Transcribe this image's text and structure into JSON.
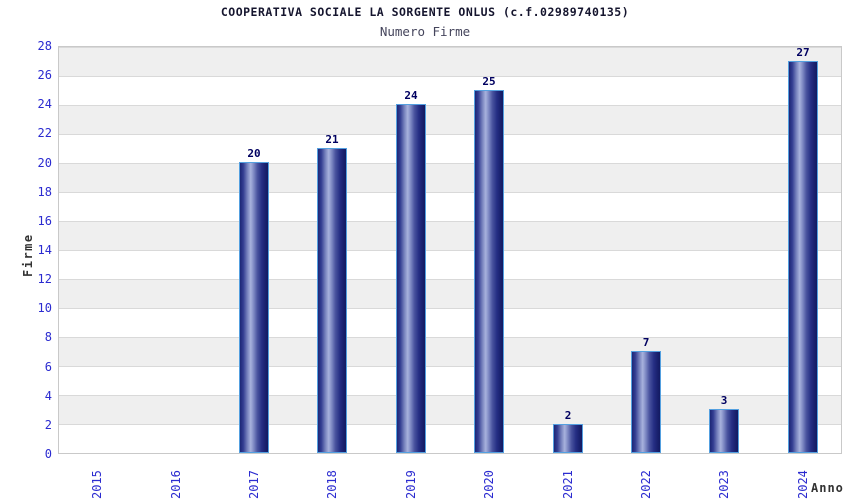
{
  "chart_data": {
    "type": "bar",
    "title": "COOPERATIVA SOCIALE LA SORGENTE ONLUS (c.f.02989740135)",
    "subtitle": "Numero Firme",
    "xlabel": "Anno",
    "ylabel": "Firme",
    "categories": [
      "2015",
      "2016",
      "2017",
      "2018",
      "2019",
      "2020",
      "2021",
      "2022",
      "2023",
      "2024"
    ],
    "values": [
      0,
      0,
      20,
      21,
      24,
      25,
      2,
      7,
      3,
      27
    ],
    "ylim": [
      0,
      28
    ],
    "ytick_step": 2,
    "yticks": [
      0,
      2,
      4,
      6,
      8,
      10,
      12,
      14,
      16,
      18,
      20,
      22,
      24,
      26,
      28
    ],
    "legend_position": "none",
    "grid": "horizontal bands every 2 units, alternating white / light gray, thin gridline at each even value",
    "value_labels": "shown above bars with non-zero values only",
    "colors": {
      "tick_label": "#2b2bd0",
      "title": "#15152e",
      "subtitle": "#45455c",
      "axis_title": "#333333",
      "bar_dark": "#1d2676",
      "bar_light": "#a8b2dd",
      "bar_border": "#54a0e0",
      "value_label": "#000060",
      "band_gray": "#efefef",
      "band_white": "#ffffff",
      "grid_line": "#d9d9d9",
      "plot_border": "#c9c9c9",
      "background": "#ffffff"
    }
  }
}
